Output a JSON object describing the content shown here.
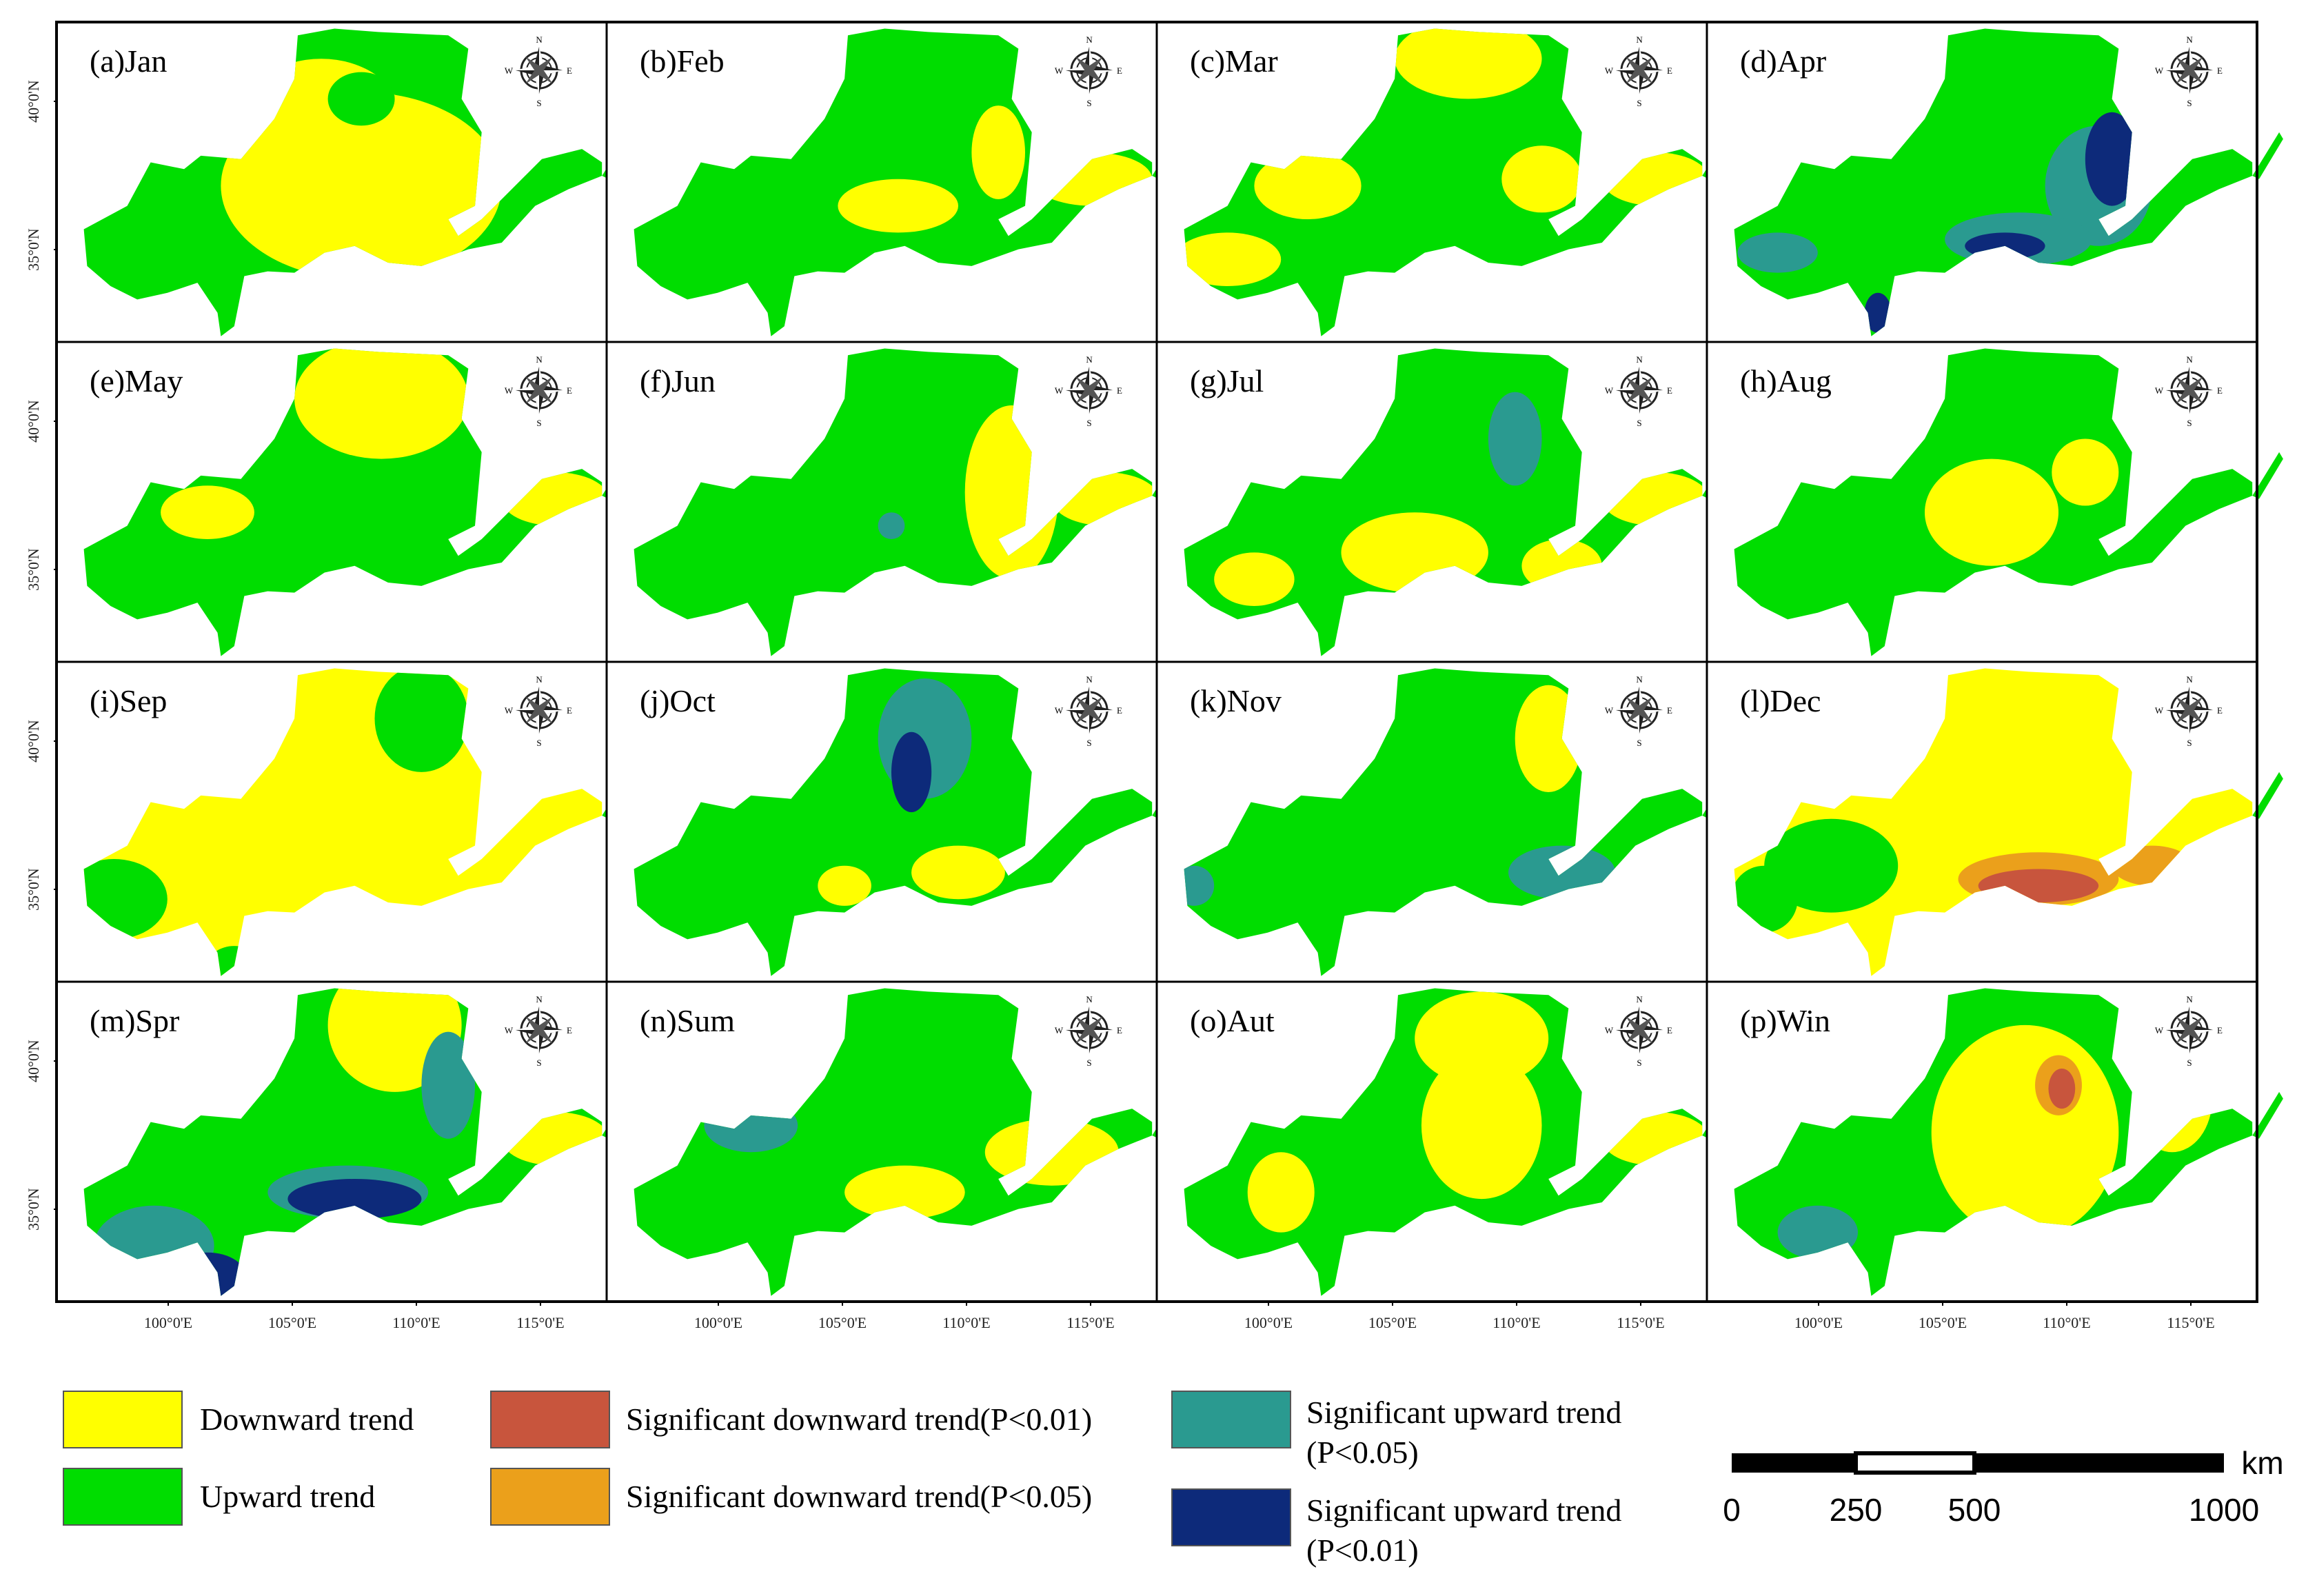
{
  "figure": {
    "panels": [
      {
        "id": "a",
        "label": "(a)Jan",
        "pattern": "mostly-down"
      },
      {
        "id": "b",
        "label": "(b)Feb",
        "pattern": "mostly-up"
      },
      {
        "id": "c",
        "label": "(c)Mar",
        "pattern": "mixed"
      },
      {
        "id": "d",
        "label": "(d)Apr",
        "pattern": "up-significant"
      },
      {
        "id": "e",
        "label": "(e)May",
        "pattern": "north-down"
      },
      {
        "id": "f",
        "label": "(f)Jun",
        "pattern": "east-down"
      },
      {
        "id": "g",
        "label": "(g)Jul",
        "pattern": "south-down"
      },
      {
        "id": "h",
        "label": "(h)Aug",
        "pattern": "mixed-up"
      },
      {
        "id": "i",
        "label": "(i)Sep",
        "pattern": "mostly-down-sep"
      },
      {
        "id": "j",
        "label": "(j)Oct",
        "pattern": "up-north-sig"
      },
      {
        "id": "k",
        "label": "(k)Nov",
        "pattern": "up-nov"
      },
      {
        "id": "l",
        "label": "(l)Dec",
        "pattern": "down-significant"
      },
      {
        "id": "m",
        "label": "(m)Spr",
        "pattern": "up-significant-south"
      },
      {
        "id": "n",
        "label": "(n)Sum",
        "pattern": "up-sum"
      },
      {
        "id": "o",
        "label": "(o)Aut",
        "pattern": "aut"
      },
      {
        "id": "p",
        "label": "(p)Win",
        "pattern": "win"
      }
    ],
    "lat_labels": [
      "40°0'N",
      "35°0'N"
    ],
    "lon_labels": [
      "100°0'E",
      "105°0'E",
      "110°0'E",
      "115°0'E"
    ],
    "compass": {
      "n": "N",
      "s": "S",
      "e": "E",
      "w": "W"
    },
    "legend": [
      {
        "label": "Downward trend",
        "color": "#ffff00"
      },
      {
        "label": "Upward trend",
        "color": "#00dd00"
      },
      {
        "label": "Significant downward trend(P<0.01)",
        "color": "#c8553d"
      },
      {
        "label": "Significant downward trend(P<0.05)",
        "color": "#eba01b"
      },
      {
        "label_lines": [
          "Significant upward trend",
          "(P<0.05)"
        ],
        "color": "#2a9a90"
      },
      {
        "label_lines": [
          "Significant upward trend",
          "(P<0.01)"
        ],
        "color": "#0d2a7a"
      }
    ],
    "scale_bar": {
      "unit": "km",
      "ticks": [
        "0",
        "250",
        "500",
        "1000"
      ]
    }
  }
}
